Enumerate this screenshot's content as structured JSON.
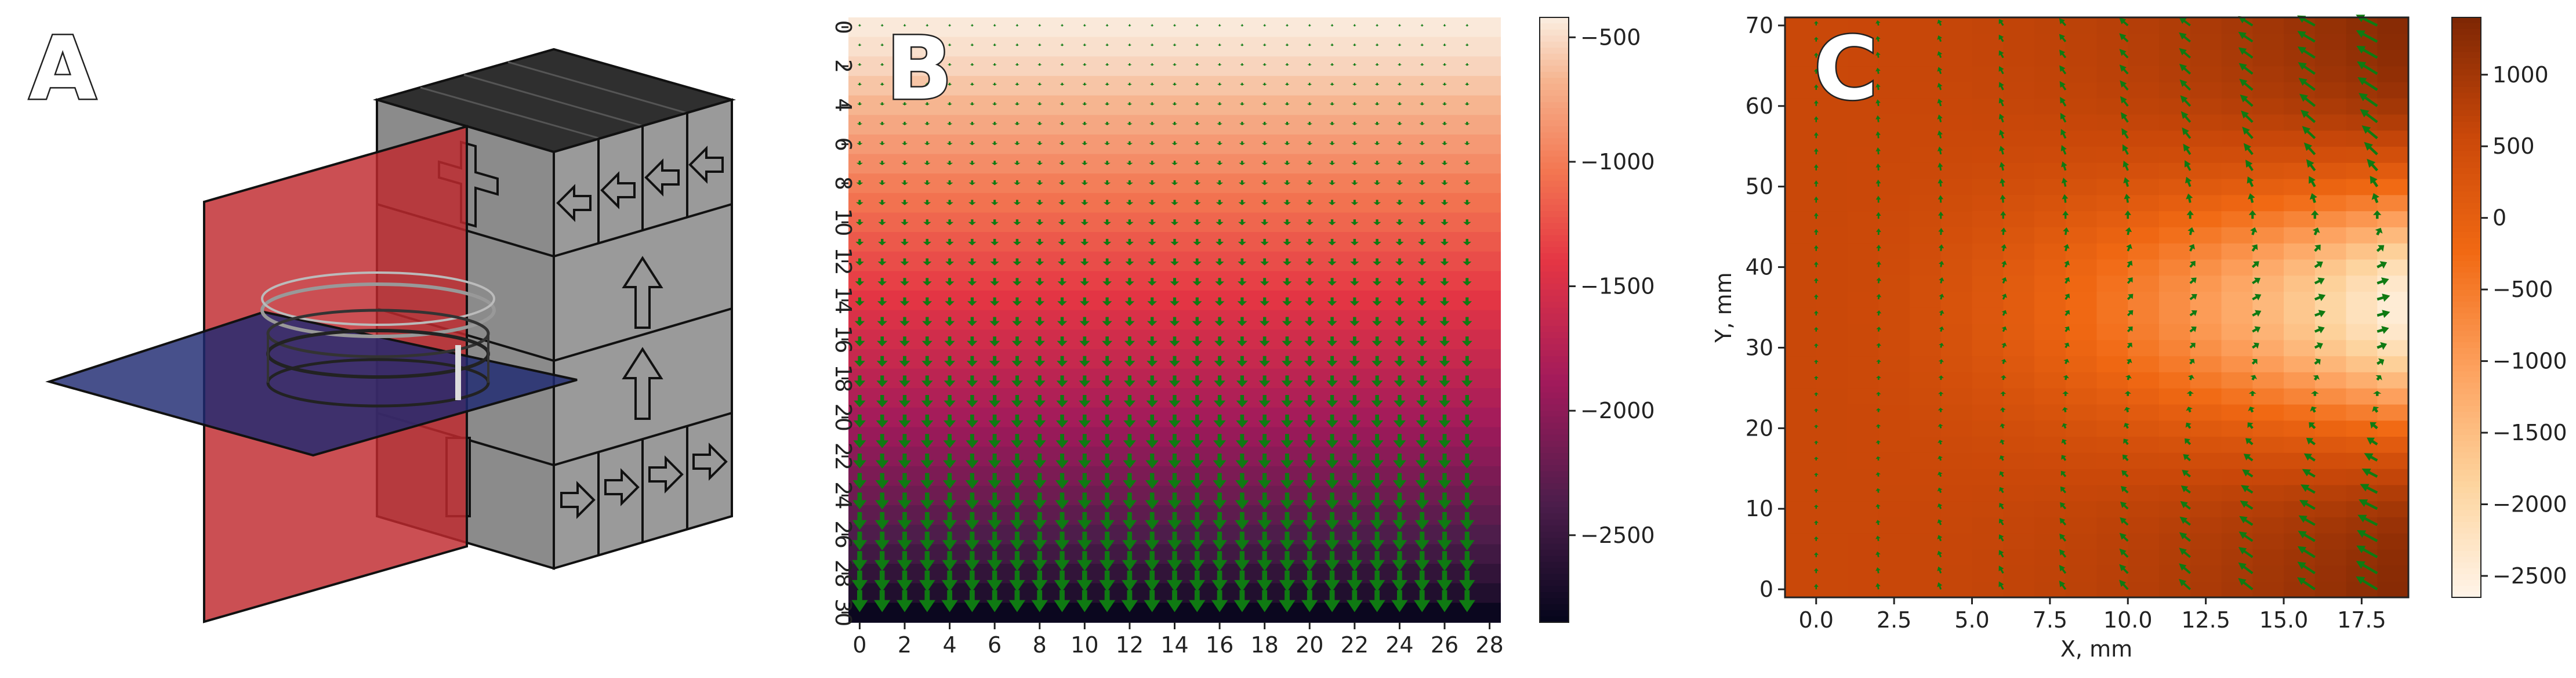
{
  "colors": {
    "cube_top": "#2f2f2f",
    "cube_front": "#8b8b8b",
    "cube_side": "#9a9a9a",
    "plane_red": "#c0282d",
    "plane_blue": "#1e2a72",
    "arrow_green": "#0f7a12"
  },
  "panels": {
    "a": {
      "label": "A"
    },
    "b": {
      "label": "B"
    },
    "c": {
      "label": "C"
    }
  },
  "chart_data": [
    {
      "type": "heatmap",
      "overlay": "quiver",
      "colormap": "rocket",
      "title": "",
      "xlabel": "",
      "ylabel": "",
      "x_ticks": [
        "0",
        "2",
        "4",
        "6",
        "8",
        "10",
        "12",
        "14",
        "16",
        "18",
        "20",
        "22",
        "24",
        "26",
        "28"
      ],
      "y_ticks": [
        "0",
        "2",
        "4",
        "6",
        "8",
        "10",
        "12",
        "14",
        "16",
        "18",
        "20",
        "22",
        "24",
        "26",
        "28",
        "30"
      ],
      "xlim": [
        0,
        28
      ],
      "ylim": [
        30,
        0
      ],
      "y_axis_rotated": true,
      "colorbar_ticks": [
        "−500",
        "−1000",
        "−1500",
        "−2000",
        "−2500"
      ],
      "colorbar_range": [
        -2850,
        -420
      ],
      "colorbar_tick_values": [
        -500,
        -1000,
        -1500,
        -2000,
        -2500
      ],
      "row_values": [
        -430,
        -470,
        -520,
        -590,
        -660,
        -740,
        -820,
        -900,
        -980,
        -1050,
        -1120,
        -1190,
        -1260,
        -1330,
        -1400,
        -1470,
        -1540,
        -1610,
        -1690,
        -1770,
        -1850,
        -1930,
        -2010,
        -2090,
        -2170,
        -2260,
        -2350,
        -2440,
        -2540,
        -2650,
        -2800
      ],
      "arrow_direction": "down",
      "arrow_magnitude_trend": "increasing with depth"
    },
    {
      "type": "heatmap",
      "overlay": "quiver",
      "colormap": "Oranges_r",
      "title": "",
      "xlabel": "X, mm",
      "ylabel": "Y, mm",
      "x_ticks": [
        "0.0",
        "2.5",
        "5.0",
        "7.5",
        "10.0",
        "12.5",
        "15.0",
        "17.5"
      ],
      "y_ticks": [
        "0",
        "10",
        "20",
        "30",
        "40",
        "50",
        "60",
        "70"
      ],
      "x_tick_values": [
        0,
        2.5,
        5,
        7.5,
        10,
        12.5,
        15,
        17.5
      ],
      "y_tick_values": [
        0,
        10,
        20,
        30,
        40,
        50,
        60,
        70
      ],
      "xlim": [
        -1,
        19
      ],
      "ylim": [
        -1,
        71
      ],
      "colorbar_ticks": [
        "1000",
        "500",
        "0",
        "−500",
        "−1000",
        "−1500",
        "−2000",
        "−2500"
      ],
      "colorbar_tick_values": [
        1000,
        500,
        0,
        -500,
        -1000,
        -1500,
        -2000,
        -2500
      ],
      "colorbar_range": [
        -2650,
        1400
      ],
      "arrow_columns_x": [
        0,
        2,
        4,
        6,
        8,
        10,
        12,
        14,
        16,
        18
      ]
    }
  ]
}
